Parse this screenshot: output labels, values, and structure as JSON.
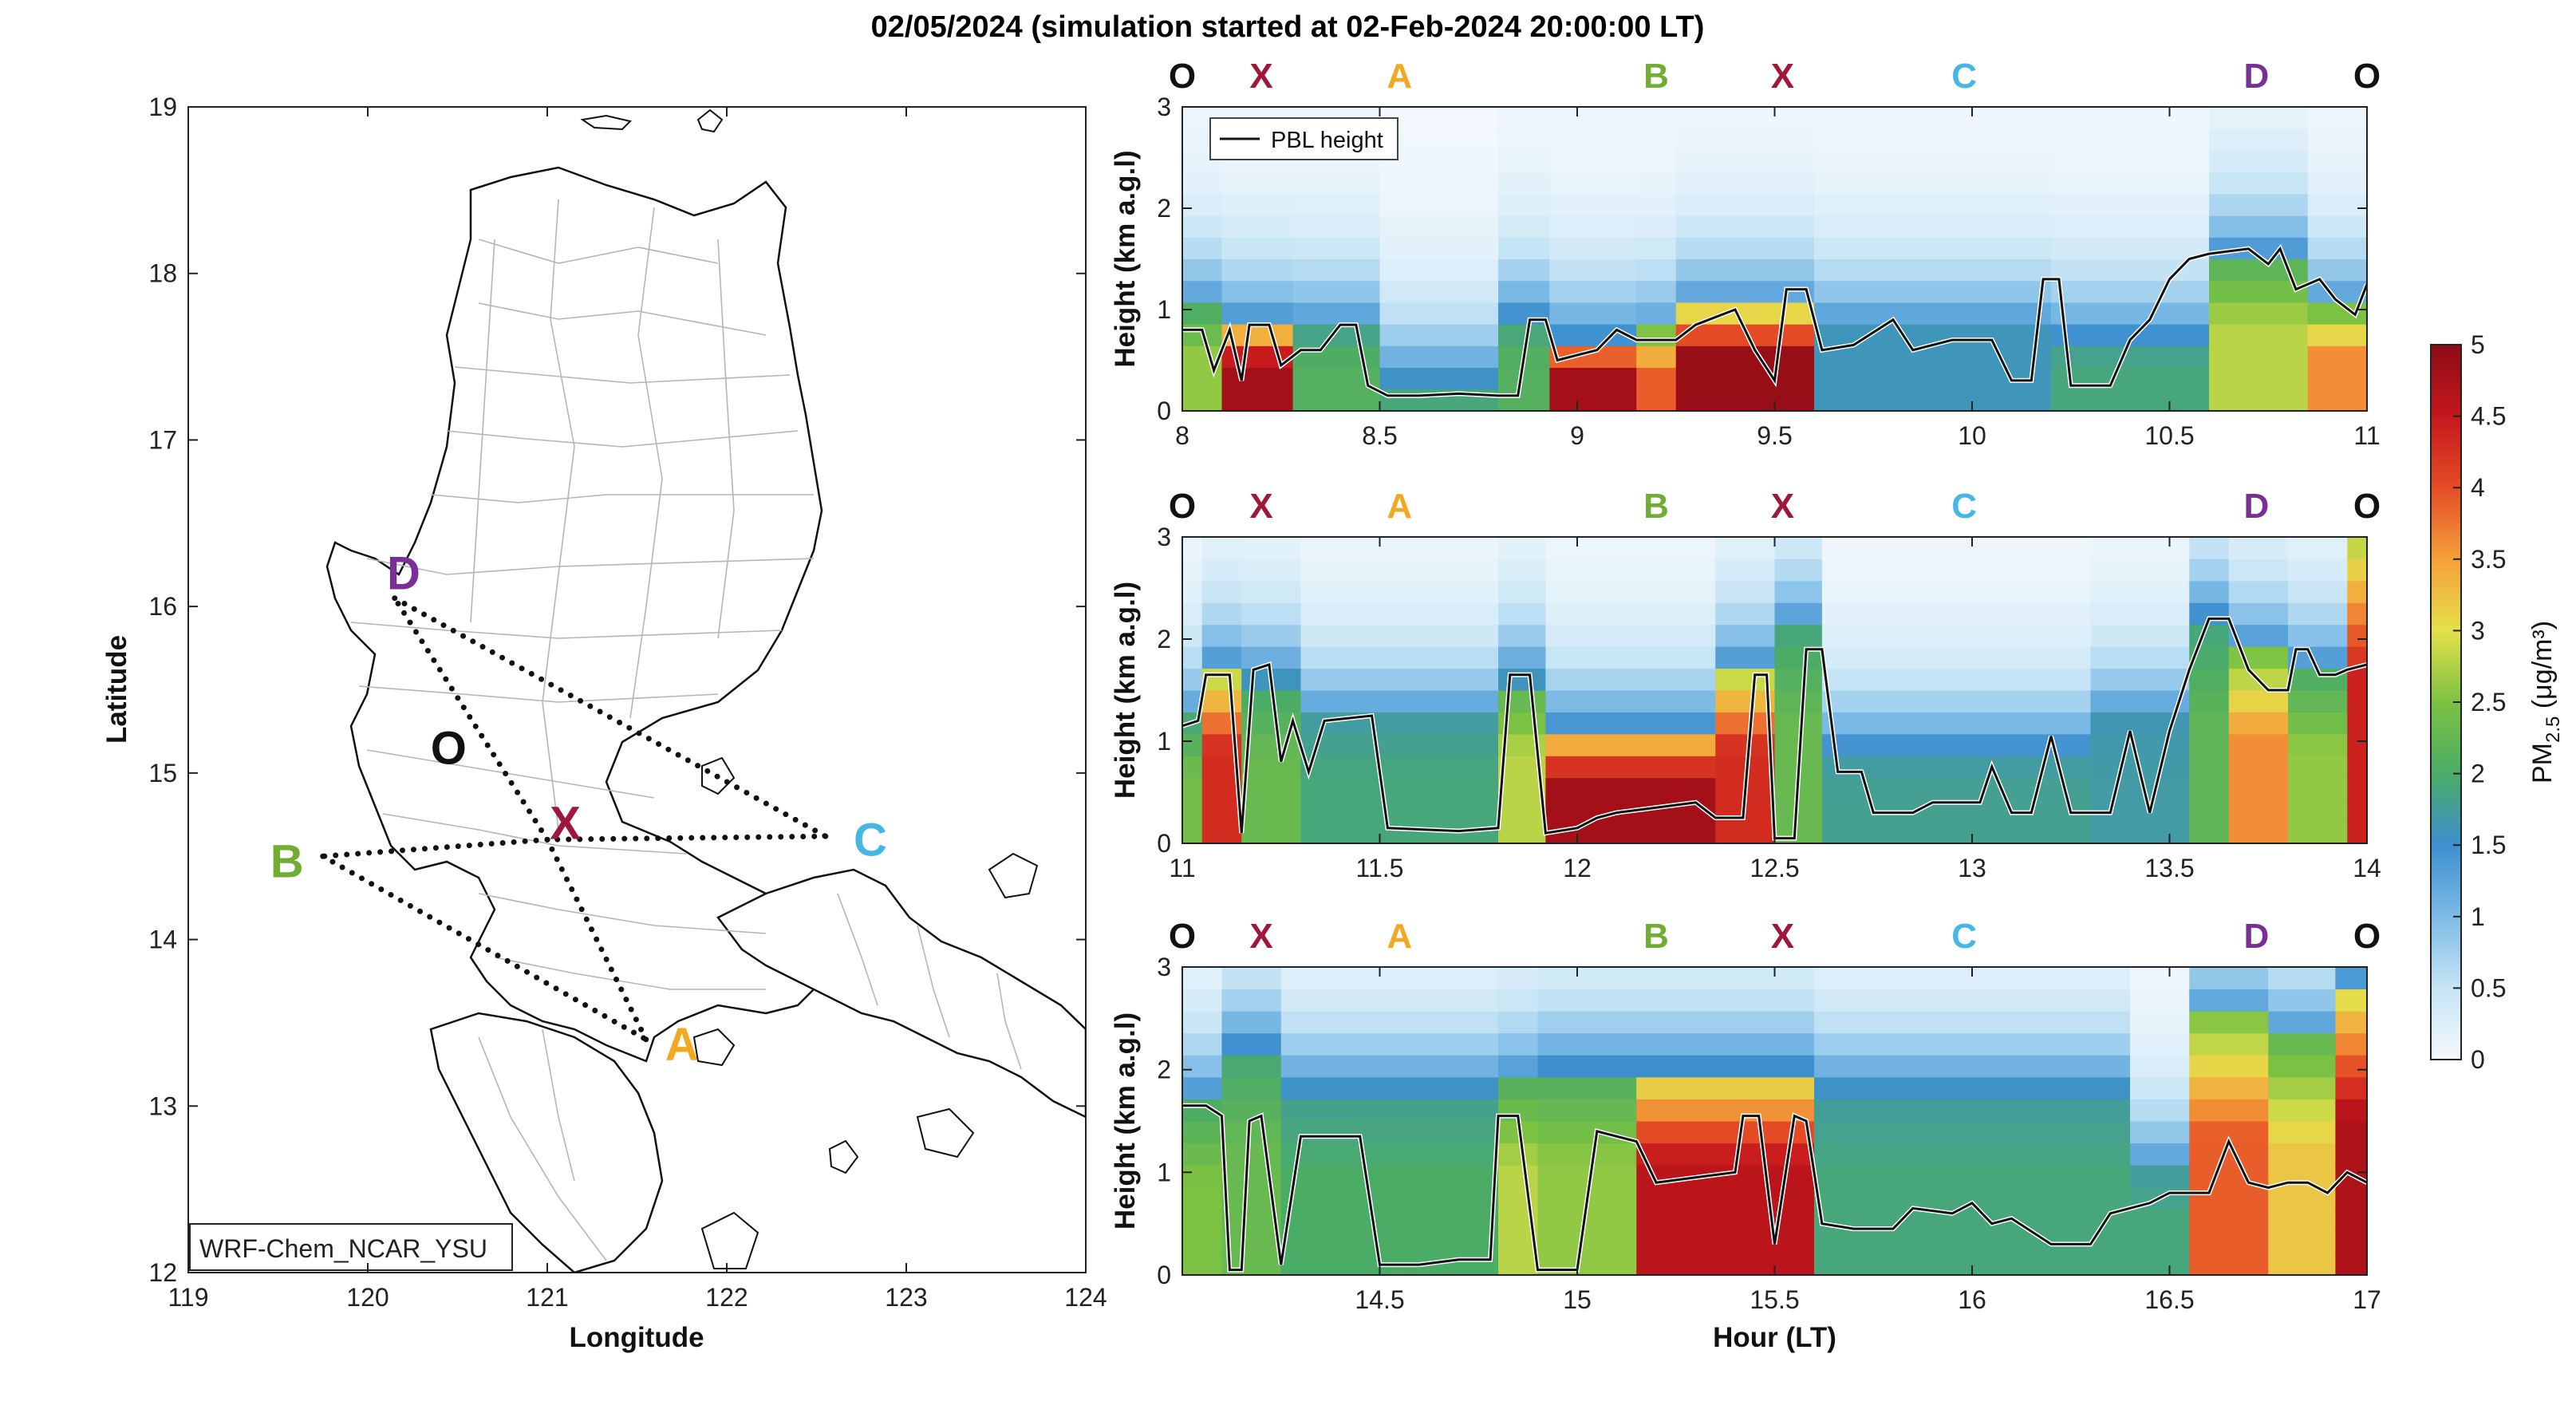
{
  "title": "02/05/2024 (simulation started at 02-Feb-2024 20:00:00 LT)",
  "colors": {
    "O": "#111111",
    "X": "#a0173a",
    "A": "#f3a823",
    "B": "#6fae32",
    "C": "#46b7e4",
    "D": "#7a2f96"
  },
  "map": {
    "label_box": "WRF-Chem_NCAR_YSU",
    "xlabel": "Longitude",
    "ylabel": "Latitude",
    "xticks": [
      "119",
      "120",
      "121",
      "122",
      "123",
      "124"
    ],
    "yticks": [
      "12",
      "13",
      "14",
      "15",
      "16",
      "17",
      "18",
      "19"
    ],
    "xlim": [
      119,
      124
    ],
    "ylim": [
      12,
      19
    ],
    "points": [
      {
        "name": "D",
        "lon": 120.15,
        "lat": 16.05,
        "label_lon": 120.2,
        "label_lat": 16.2
      },
      {
        "name": "O",
        "lon": 120.45,
        "lat": 15.2,
        "label_lon": 120.45,
        "label_lat": 15.15
      },
      {
        "name": "X",
        "lon": 121.0,
        "lat": 14.6,
        "label_lon": 121.1,
        "label_lat": 14.7
      },
      {
        "name": "B",
        "lon": 119.75,
        "lat": 14.5,
        "label_lon": 119.55,
        "label_lat": 14.47
      },
      {
        "name": "C",
        "lon": 122.55,
        "lat": 14.62,
        "label_lon": 122.8,
        "label_lat": 14.6
      },
      {
        "name": "A",
        "lon": 121.55,
        "lat": 13.4,
        "label_lon": 121.75,
        "label_lat": 13.37
      }
    ],
    "route": [
      "D",
      "C",
      "X",
      "B",
      "A",
      "X",
      "D"
    ]
  },
  "chart_data": [
    {
      "type": "heatmap",
      "xlim": [
        8,
        11
      ],
      "ylim": [
        0,
        3
      ],
      "xticks": [
        "8",
        "8.5",
        "9",
        "9.5",
        "10",
        "10.5",
        "11"
      ],
      "yticks": [
        "0",
        "1",
        "2",
        "3"
      ],
      "ylabel": "Height (km a.g.l)",
      "legend": "PBL height",
      "legend_position": "top-left",
      "markers": [
        {
          "label": "O",
          "x": 8.0
        },
        {
          "label": "X",
          "x": 8.2
        },
        {
          "label": "A",
          "x": 8.55
        },
        {
          "label": "B",
          "x": 9.2
        },
        {
          "label": "X",
          "x": 9.52
        },
        {
          "label": "C",
          "x": 9.98
        },
        {
          "label": "D",
          "x": 10.72
        },
        {
          "label": "O",
          "x": 11.0
        }
      ],
      "columns": [
        {
          "x0": 8.0,
          "x1": 8.1,
          "surface": 2.6,
          "top": 1.0
        },
        {
          "x0": 8.1,
          "x1": 8.28,
          "surface": 4.8,
          "top": 0.85
        },
        {
          "x0": 8.28,
          "x1": 8.5,
          "surface": 2.1,
          "top": 0.8
        },
        {
          "x0": 8.5,
          "x1": 8.8,
          "surface": 1.9,
          "top": 0.3
        },
        {
          "x0": 8.8,
          "x1": 8.93,
          "surface": 2.1,
          "top": 0.9
        },
        {
          "x0": 8.93,
          "x1": 9.15,
          "surface": 4.8,
          "top": 0.7
        },
        {
          "x0": 9.15,
          "x1": 9.25,
          "surface": 3.9,
          "top": 0.75
        },
        {
          "x0": 9.25,
          "x1": 9.6,
          "surface": 4.9,
          "top": 1.0
        },
        {
          "x0": 9.6,
          "x1": 10.2,
          "surface": 1.6,
          "top": 0.8
        },
        {
          "x0": 10.2,
          "x1": 10.6,
          "surface": 1.9,
          "top": 0.7
        },
        {
          "x0": 10.6,
          "x1": 10.85,
          "surface": 2.8,
          "top": 1.5
        },
        {
          "x0": 10.85,
          "x1": 11.0,
          "surface": 3.6,
          "top": 1.0
        }
      ],
      "pbl": [
        [
          8.0,
          0.8
        ],
        [
          8.05,
          0.8
        ],
        [
          8.08,
          0.4
        ],
        [
          8.12,
          0.8
        ],
        [
          8.15,
          0.3
        ],
        [
          8.17,
          0.85
        ],
        [
          8.22,
          0.85
        ],
        [
          8.25,
          0.45
        ],
        [
          8.3,
          0.6
        ],
        [
          8.35,
          0.6
        ],
        [
          8.4,
          0.85
        ],
        [
          8.44,
          0.85
        ],
        [
          8.47,
          0.25
        ],
        [
          8.52,
          0.15
        ],
        [
          8.6,
          0.15
        ],
        [
          8.7,
          0.17
        ],
        [
          8.8,
          0.15
        ],
        [
          8.85,
          0.15
        ],
        [
          8.88,
          0.9
        ],
        [
          8.92,
          0.9
        ],
        [
          8.95,
          0.5
        ],
        [
          9.0,
          0.55
        ],
        [
          9.05,
          0.6
        ],
        [
          9.1,
          0.8
        ],
        [
          9.15,
          0.7
        ],
        [
          9.25,
          0.7
        ],
        [
          9.3,
          0.85
        ],
        [
          9.4,
          1.0
        ],
        [
          9.45,
          0.6
        ],
        [
          9.5,
          0.3
        ],
        [
          9.53,
          1.2
        ],
        [
          9.58,
          1.2
        ],
        [
          9.62,
          0.6
        ],
        [
          9.7,
          0.65
        ],
        [
          9.8,
          0.9
        ],
        [
          9.85,
          0.6
        ],
        [
          9.9,
          0.65
        ],
        [
          9.95,
          0.7
        ],
        [
          10.05,
          0.7
        ],
        [
          10.1,
          0.3
        ],
        [
          10.15,
          0.3
        ],
        [
          10.18,
          1.3
        ],
        [
          10.22,
          1.3
        ],
        [
          10.25,
          0.25
        ],
        [
          10.35,
          0.25
        ],
        [
          10.4,
          0.7
        ],
        [
          10.45,
          0.9
        ],
        [
          10.5,
          1.3
        ],
        [
          10.55,
          1.5
        ],
        [
          10.6,
          1.55
        ],
        [
          10.7,
          1.6
        ],
        [
          10.75,
          1.45
        ],
        [
          10.78,
          1.6
        ],
        [
          10.82,
          1.2
        ],
        [
          10.88,
          1.3
        ],
        [
          10.92,
          1.1
        ],
        [
          10.97,
          0.95
        ],
        [
          11.0,
          1.25
        ]
      ]
    },
    {
      "type": "heatmap",
      "xlim": [
        11,
        14
      ],
      "ylim": [
        0,
        3
      ],
      "xticks": [
        "11",
        "11.5",
        "12",
        "12.5",
        "13",
        "13.5",
        "14"
      ],
      "yticks": [
        "0",
        "1",
        "2",
        "3"
      ],
      "ylabel": "Height (km a.g.l)",
      "markers": [
        {
          "label": "O",
          "x": 11.0
        },
        {
          "label": "X",
          "x": 11.2
        },
        {
          "label": "A",
          "x": 11.55
        },
        {
          "label": "B",
          "x": 12.2
        },
        {
          "label": "X",
          "x": 12.52
        },
        {
          "label": "C",
          "x": 12.98
        },
        {
          "label": "D",
          "x": 13.72
        },
        {
          "label": "O",
          "x": 14.0
        }
      ],
      "columns": [
        {
          "x0": 11.0,
          "x1": 11.05,
          "surface": 2.4,
          "top": 1.2
        },
        {
          "x0": 11.05,
          "x1": 11.15,
          "surface": 4.3,
          "top": 1.7
        },
        {
          "x0": 11.15,
          "x1": 11.3,
          "surface": 2.3,
          "top": 1.6
        },
        {
          "x0": 11.3,
          "x1": 11.8,
          "surface": 1.9,
          "top": 1.2
        },
        {
          "x0": 11.8,
          "x1": 11.92,
          "surface": 2.8,
          "top": 1.6
        },
        {
          "x0": 11.92,
          "x1": 12.35,
          "surface": 4.8,
          "top": 1.1
        },
        {
          "x0": 12.35,
          "x1": 12.5,
          "surface": 4.3,
          "top": 1.7
        },
        {
          "x0": 12.5,
          "x1": 12.62,
          "surface": 2.3,
          "top": 2.1
        },
        {
          "x0": 12.62,
          "x1": 13.3,
          "surface": 1.8,
          "top": 0.9
        },
        {
          "x0": 13.3,
          "x1": 13.55,
          "surface": 1.7,
          "top": 1.2
        },
        {
          "x0": 13.55,
          "x1": 13.65,
          "surface": 2.2,
          "top": 2.2
        },
        {
          "x0": 13.65,
          "x1": 13.8,
          "surface": 3.6,
          "top": 1.9
        },
        {
          "x0": 13.8,
          "x1": 13.95,
          "surface": 2.6,
          "top": 1.7
        },
        {
          "x0": 13.95,
          "x1": 14.0,
          "surface": 4.4,
          "top": 3.0
        }
      ],
      "pbl": [
        [
          11.0,
          1.15
        ],
        [
          11.04,
          1.2
        ],
        [
          11.06,
          1.65
        ],
        [
          11.12,
          1.65
        ],
        [
          11.15,
          0.1
        ],
        [
          11.18,
          1.7
        ],
        [
          11.22,
          1.75
        ],
        [
          11.25,
          0.8
        ],
        [
          11.28,
          1.2
        ],
        [
          11.32,
          0.7
        ],
        [
          11.36,
          1.2
        ],
        [
          11.48,
          1.25
        ],
        [
          11.52,
          0.15
        ],
        [
          11.7,
          0.12
        ],
        [
          11.8,
          0.15
        ],
        [
          11.83,
          1.65
        ],
        [
          11.88,
          1.65
        ],
        [
          11.92,
          0.1
        ],
        [
          12.0,
          0.15
        ],
        [
          12.05,
          0.25
        ],
        [
          12.1,
          0.3
        ],
        [
          12.2,
          0.35
        ],
        [
          12.3,
          0.4
        ],
        [
          12.35,
          0.25
        ],
        [
          12.42,
          0.25
        ],
        [
          12.45,
          1.65
        ],
        [
          12.48,
          1.65
        ],
        [
          12.5,
          0.05
        ],
        [
          12.55,
          0.05
        ],
        [
          12.58,
          1.9
        ],
        [
          12.62,
          1.9
        ],
        [
          12.66,
          0.7
        ],
        [
          12.72,
          0.7
        ],
        [
          12.75,
          0.3
        ],
        [
          12.85,
          0.3
        ],
        [
          12.9,
          0.4
        ],
        [
          13.02,
          0.4
        ],
        [
          13.05,
          0.75
        ],
        [
          13.1,
          0.3
        ],
        [
          13.15,
          0.3
        ],
        [
          13.2,
          1.05
        ],
        [
          13.25,
          0.3
        ],
        [
          13.35,
          0.3
        ],
        [
          13.4,
          1.1
        ],
        [
          13.45,
          0.3
        ],
        [
          13.5,
          1.1
        ],
        [
          13.55,
          1.7
        ],
        [
          13.6,
          2.2
        ],
        [
          13.65,
          2.2
        ],
        [
          13.7,
          1.7
        ],
        [
          13.75,
          1.5
        ],
        [
          13.8,
          1.5
        ],
        [
          13.82,
          1.9
        ],
        [
          13.85,
          1.9
        ],
        [
          13.88,
          1.65
        ],
        [
          13.92,
          1.65
        ],
        [
          13.95,
          1.7
        ],
        [
          14.0,
          1.75
        ]
      ]
    },
    {
      "type": "heatmap",
      "xlim": [
        14,
        17
      ],
      "ylim": [
        0,
        3
      ],
      "xticks": [
        "14.5",
        "15",
        "15.5",
        "16",
        "16.5",
        "17"
      ],
      "xtick_values": [
        14.5,
        15,
        15.5,
        16,
        16.5,
        17
      ],
      "yticks": [
        "0",
        "1",
        "2",
        "3"
      ],
      "ylabel": "Height (km a.g.l)",
      "xlabel": "Hour (LT)",
      "markers": [
        {
          "label": "O",
          "x": 14.0
        },
        {
          "label": "X",
          "x": 14.2
        },
        {
          "label": "A",
          "x": 14.55
        },
        {
          "label": "B",
          "x": 15.2
        },
        {
          "label": "X",
          "x": 15.52
        },
        {
          "label": "C",
          "x": 15.98
        },
        {
          "label": "D",
          "x": 16.72
        },
        {
          "label": "O",
          "x": 17.0
        }
      ],
      "columns": [
        {
          "x0": 14.0,
          "x1": 14.1,
          "surface": 2.5,
          "top": 1.7
        },
        {
          "x0": 14.1,
          "x1": 14.25,
          "surface": 2.3,
          "top": 2.2
        },
        {
          "x0": 14.25,
          "x1": 14.8,
          "surface": 2.0,
          "top": 1.8
        },
        {
          "x0": 14.8,
          "x1": 14.9,
          "surface": 2.8,
          "top": 1.9
        },
        {
          "x0": 14.9,
          "x1": 15.15,
          "surface": 2.6,
          "top": 2.0
        },
        {
          "x0": 15.15,
          "x1": 15.6,
          "surface": 4.6,
          "top": 2.0
        },
        {
          "x0": 15.6,
          "x1": 16.4,
          "surface": 1.9,
          "top": 1.8
        },
        {
          "x0": 16.4,
          "x1": 16.55,
          "surface": 1.9,
          "top": 1.0
        },
        {
          "x0": 16.55,
          "x1": 16.75,
          "surface": 3.9,
          "top": 2.5
        },
        {
          "x0": 16.75,
          "x1": 16.92,
          "surface": 3.2,
          "top": 2.3
        },
        {
          "x0": 16.92,
          "x1": 17.0,
          "surface": 4.7,
          "top": 2.8
        }
      ],
      "pbl": [
        [
          14.0,
          1.65
        ],
        [
          14.06,
          1.65
        ],
        [
          14.1,
          1.55
        ],
        [
          14.12,
          0.05
        ],
        [
          14.15,
          0.05
        ],
        [
          14.17,
          1.5
        ],
        [
          14.2,
          1.55
        ],
        [
          14.25,
          0.1
        ],
        [
          14.3,
          1.35
        ],
        [
          14.45,
          1.35
        ],
        [
          14.5,
          0.1
        ],
        [
          14.6,
          0.1
        ],
        [
          14.7,
          0.15
        ],
        [
          14.78,
          0.15
        ],
        [
          14.8,
          1.55
        ],
        [
          14.85,
          1.55
        ],
        [
          14.9,
          0.05
        ],
        [
          15.0,
          0.05
        ],
        [
          15.05,
          1.4
        ],
        [
          15.1,
          1.35
        ],
        [
          15.15,
          1.3
        ],
        [
          15.2,
          0.9
        ],
        [
          15.3,
          0.95
        ],
        [
          15.4,
          1.0
        ],
        [
          15.42,
          1.55
        ],
        [
          15.46,
          1.55
        ],
        [
          15.5,
          0.3
        ],
        [
          15.55,
          1.55
        ],
        [
          15.58,
          1.5
        ],
        [
          15.62,
          0.5
        ],
        [
          15.7,
          0.45
        ],
        [
          15.8,
          0.45
        ],
        [
          15.85,
          0.65
        ],
        [
          15.95,
          0.6
        ],
        [
          16.0,
          0.7
        ],
        [
          16.05,
          0.5
        ],
        [
          16.1,
          0.55
        ],
        [
          16.2,
          0.3
        ],
        [
          16.3,
          0.3
        ],
        [
          16.35,
          0.6
        ],
        [
          16.45,
          0.7
        ],
        [
          16.5,
          0.8
        ],
        [
          16.6,
          0.8
        ],
        [
          16.65,
          1.3
        ],
        [
          16.7,
          0.9
        ],
        [
          16.75,
          0.85
        ],
        [
          16.8,
          0.9
        ],
        [
          16.85,
          0.9
        ],
        [
          16.9,
          0.8
        ],
        [
          16.95,
          1.0
        ],
        [
          17.0,
          0.9
        ]
      ]
    }
  ],
  "colorbar": {
    "label_main": "PM",
    "label_sub": "2.5",
    "label_unit": " (μg/m³)",
    "ticks": [
      "0",
      "0.5",
      "1",
      "1.5",
      "2",
      "2.5",
      "3",
      "3.5",
      "4",
      "4.5",
      "5"
    ],
    "range": [
      0,
      5
    ]
  }
}
